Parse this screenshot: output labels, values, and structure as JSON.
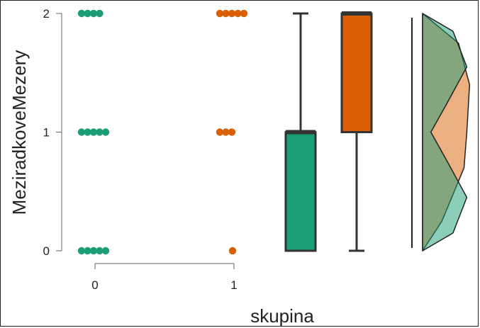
{
  "chart_data": {
    "type": "scatter",
    "title": "",
    "xlabel": "skupina",
    "ylabel": "MeziradkoveMezery",
    "x_ticks": [
      "0",
      "1"
    ],
    "y_ticks": [
      "0",
      "1",
      "2"
    ],
    "ylim": [
      0,
      2
    ],
    "grid": false,
    "legend": "none",
    "groups": [
      {
        "category": "0",
        "color": "#1b9e77",
        "points": [
          {
            "y": 2,
            "count": 4
          },
          {
            "y": 1,
            "count": 5
          },
          {
            "y": 0,
            "count": 5
          }
        ],
        "box": {
          "min": 0,
          "q1": 0,
          "median": 1,
          "q3": 1,
          "max": 2
        },
        "density": [
          [
            0,
            0.0
          ],
          [
            0.15,
            0.55
          ],
          [
            0.45,
            0.8
          ],
          [
            0.75,
            0.45
          ],
          [
            1.0,
            0.15
          ],
          [
            1.25,
            0.45
          ],
          [
            1.55,
            0.8
          ],
          [
            1.85,
            0.55
          ],
          [
            2.0,
            0.0
          ]
        ]
      },
      {
        "category": "1",
        "color": "#d95f02",
        "points": [
          {
            "y": 2,
            "count": 5
          },
          {
            "y": 1,
            "count": 3
          },
          {
            "y": 0,
            "count": 1
          }
        ],
        "box": {
          "min": 0,
          "q1": 1,
          "median": 2,
          "q3": 2,
          "max": 2
        },
        "density": [
          [
            0,
            0.0
          ],
          [
            0.25,
            0.35
          ],
          [
            0.7,
            0.75
          ],
          [
            1.0,
            0.8
          ],
          [
            1.4,
            0.85
          ],
          [
            1.75,
            0.65
          ],
          [
            2.0,
            0.0
          ]
        ]
      }
    ]
  }
}
